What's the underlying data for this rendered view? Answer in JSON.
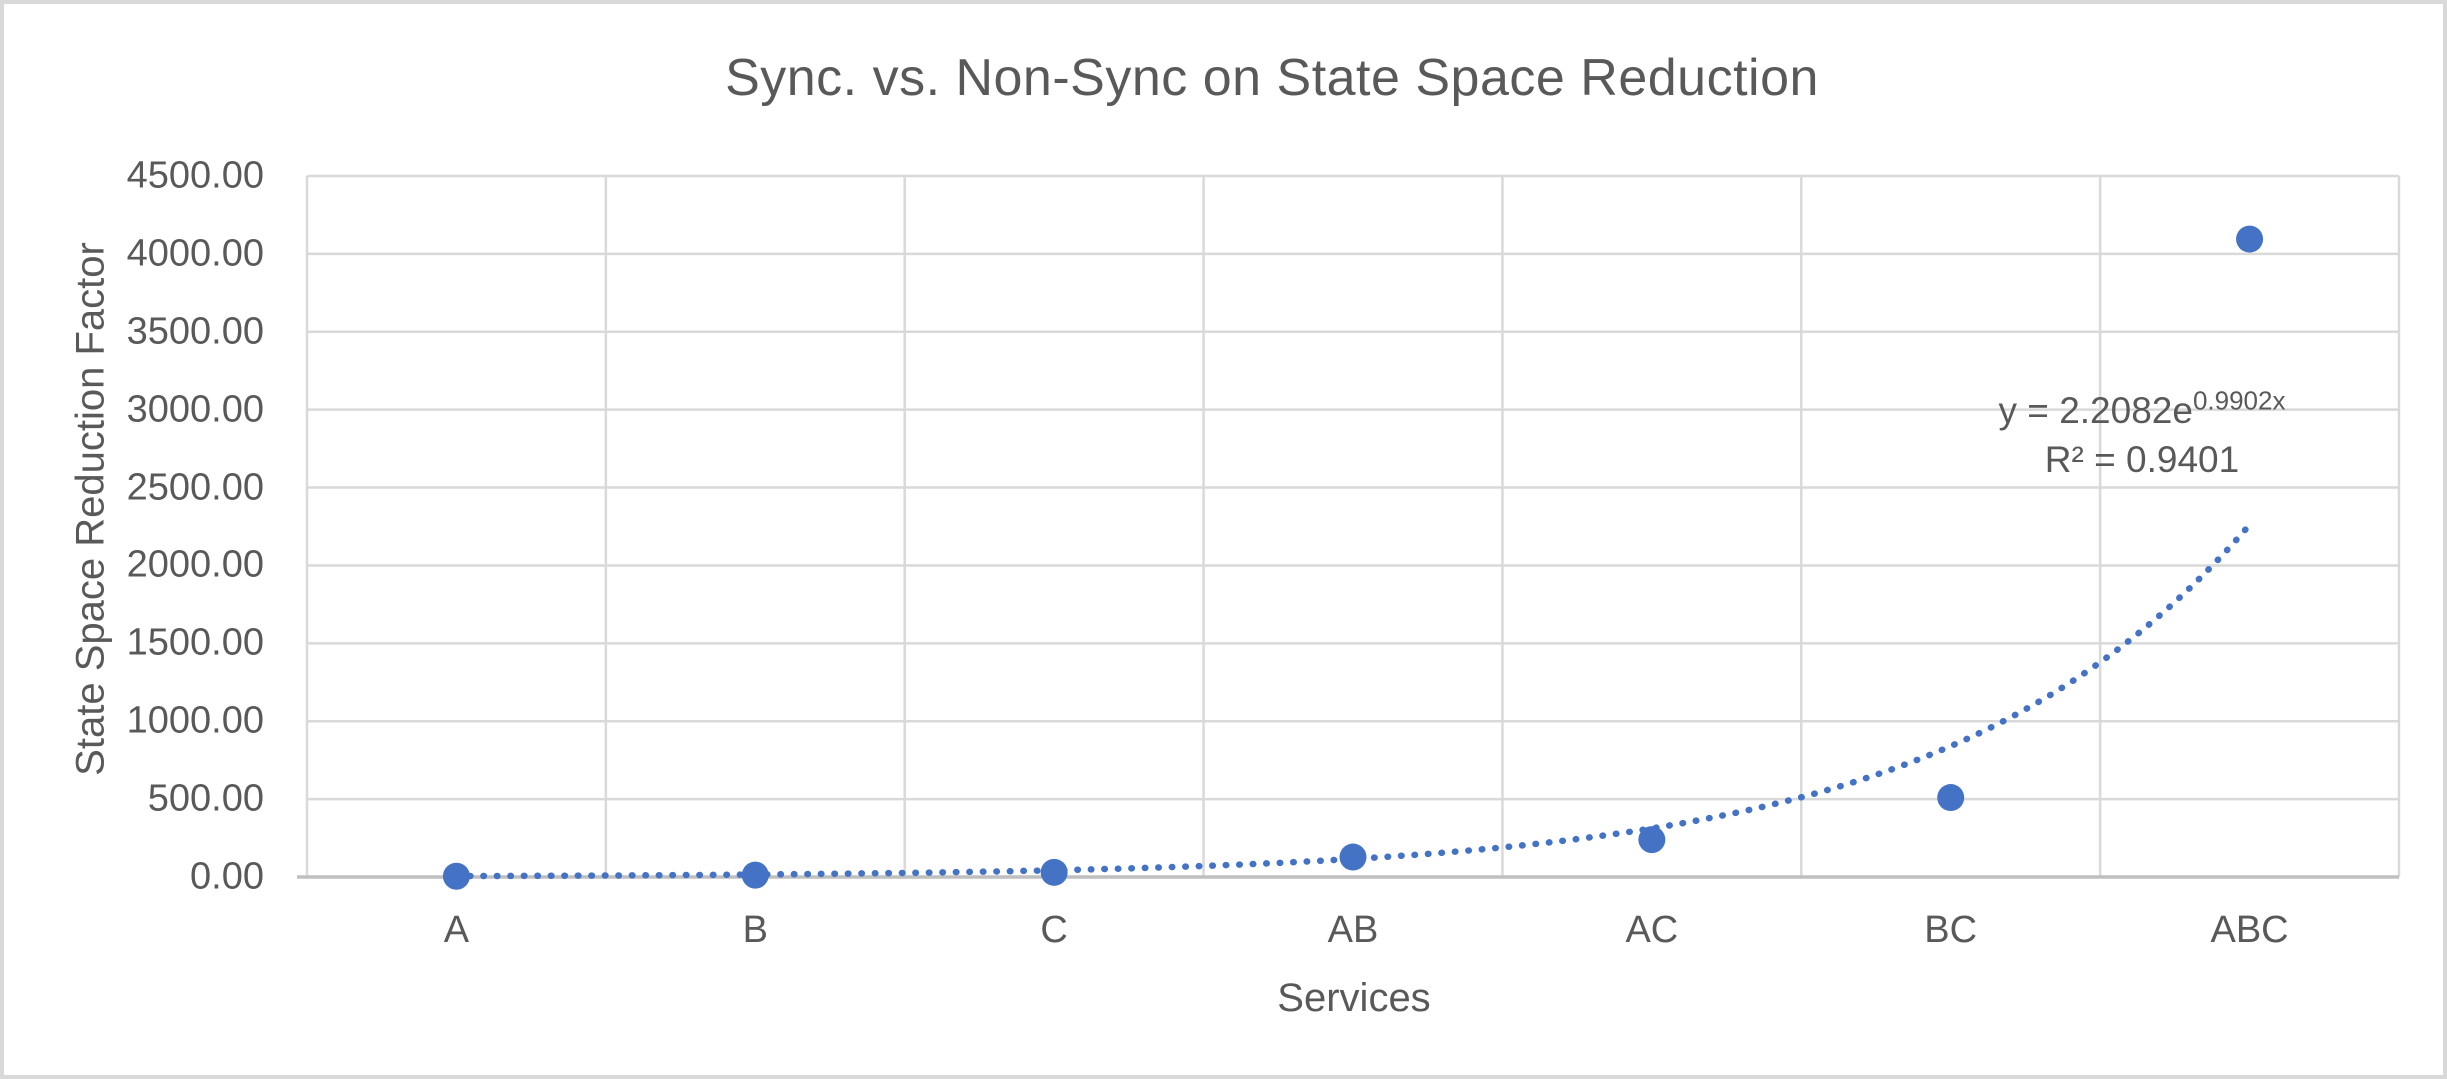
{
  "chart_data": {
    "type": "scatter",
    "title": "Sync. vs. Non-Sync on State Space Reduction",
    "xlabel": "Services",
    "ylabel": "State Space Reduction Factor",
    "categories": [
      "A",
      "B",
      "C",
      "AB",
      "AC",
      "BC",
      "ABC"
    ],
    "values": [
      5,
      12,
      30,
      128,
      240,
      510,
      4095
    ],
    "ylim": [
      0,
      4500
    ],
    "ytick_step": 500,
    "ytick_labels": [
      "0.00",
      "500.00",
      "1000.00",
      "1500.00",
      "2000.00",
      "2500.00",
      "3000.00",
      "3500.00",
      "4000.00",
      "4500.00"
    ],
    "grid": true,
    "legend": "none",
    "marker_color": "#4472C4",
    "trendline": {
      "type": "exponential",
      "a": 2.2082,
      "b": 0.9902,
      "style": "dotted",
      "color": "#4472C4",
      "equation_base": "y = 2.2082e",
      "equation_exponent": "0.9902x",
      "r2_label": "R² = 0.9401"
    },
    "colors": {
      "text": "#595959",
      "gridline": "#D9D9D9",
      "axis_line": "#BFBFBF",
      "background": "#FFFFFF",
      "frame_border": "#D9D9D9"
    }
  }
}
